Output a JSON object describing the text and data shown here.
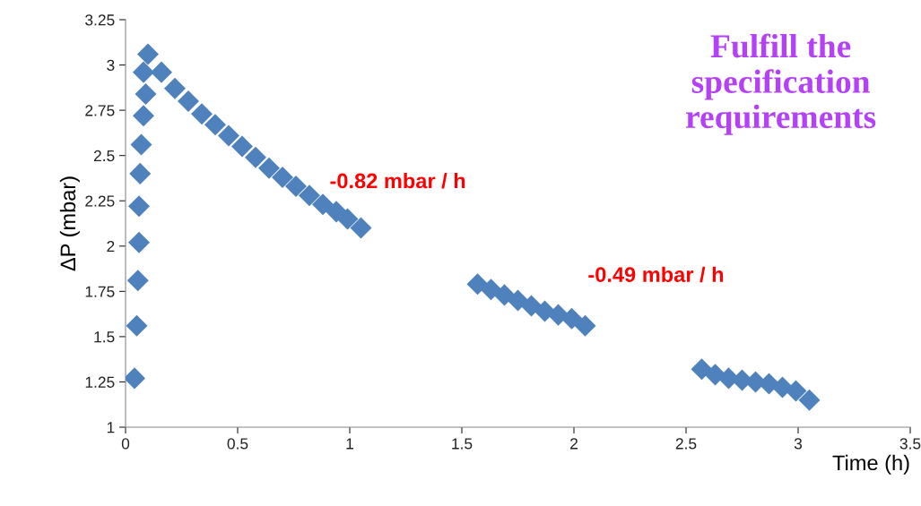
{
  "chart_data": {
    "type": "scatter",
    "title": "Fulfill the specification requirements",
    "xlabel": "Time (h)",
    "ylabel": "ΔP (mbar)",
    "xlim": [
      0,
      3.5
    ],
    "ylim": [
      1,
      3.25
    ],
    "xticks": [
      0,
      0.5,
      1,
      1.5,
      2,
      2.5,
      3,
      3.5
    ],
    "yticks": [
      1,
      1.25,
      1.5,
      1.75,
      2,
      2.25,
      2.5,
      2.75,
      3,
      3.25
    ],
    "grid": false,
    "marker": "diamond",
    "legend": false,
    "annotations": [
      "-0.82 mbar / h",
      "-0.49 mbar / h"
    ],
    "series": [
      {
        "color": "#4f81bd",
        "x": [
          0.04,
          0.05,
          0.055,
          0.06,
          0.06,
          0.065,
          0.07,
          0.08,
          0.09,
          0.08,
          0.1,
          0.16,
          0.22,
          0.28,
          0.34,
          0.4,
          0.46,
          0.52,
          0.58,
          0.64,
          0.7,
          0.76,
          0.82,
          0.88,
          0.94,
          0.99,
          1.05,
          1.57,
          1.63,
          1.69,
          1.75,
          1.81,
          1.87,
          1.93,
          1.99,
          2.05,
          2.57,
          2.63,
          2.69,
          2.75,
          2.81,
          2.87,
          2.93,
          2.99,
          3.05
        ],
        "values": [
          1.27,
          1.56,
          1.81,
          2.02,
          2.22,
          2.4,
          2.56,
          2.72,
          2.84,
          2.96,
          3.06,
          2.96,
          2.87,
          2.8,
          2.73,
          2.67,
          2.61,
          2.55,
          2.49,
          2.43,
          2.38,
          2.33,
          2.28,
          2.23,
          2.19,
          2.15,
          2.1,
          1.79,
          1.76,
          1.73,
          1.7,
          1.67,
          1.64,
          1.62,
          1.6,
          1.56,
          1.32,
          1.29,
          1.27,
          1.26,
          1.25,
          1.24,
          1.22,
          1.2,
          1.15
        ]
      }
    ]
  }
}
